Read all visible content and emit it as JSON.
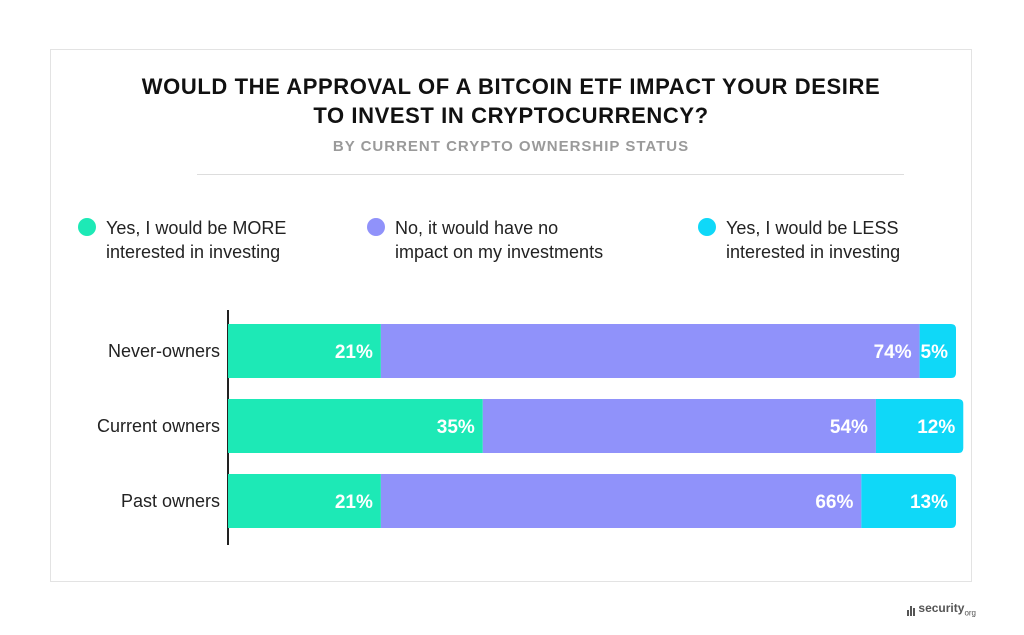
{
  "title_line1": "WOULD THE APPROVAL OF A BITCOIN ETF IMPACT YOUR DESIRE",
  "title_line2": "TO INVEST IN CRYPTOCURRENCY?",
  "subtitle": "BY CURRENT CRYPTO OWNERSHIP STATUS",
  "watermark": {
    "name": "security",
    "suffix": "org"
  },
  "chart_data": {
    "type": "bar",
    "orientation": "horizontal",
    "stacked": true,
    "categories": [
      "Never-owners",
      "Current owners",
      "Past owners"
    ],
    "series": [
      {
        "name": "Yes, I would be MORE\ninterested in investing",
        "color": "#1de9b6",
        "values": [
          21,
          35,
          21
        ]
      },
      {
        "name": "No, it would have no\nimpact on my investments",
        "color": "#9092fa",
        "values": [
          74,
          54,
          66
        ]
      },
      {
        "name": "Yes, I would be LESS\ninterested in investing",
        "color": "#0fd8f8",
        "values": [
          5,
          12,
          13
        ]
      }
    ],
    "value_suffix": "%",
    "xlim": [
      0,
      100
    ],
    "legend_position": "top",
    "grid": false
  }
}
